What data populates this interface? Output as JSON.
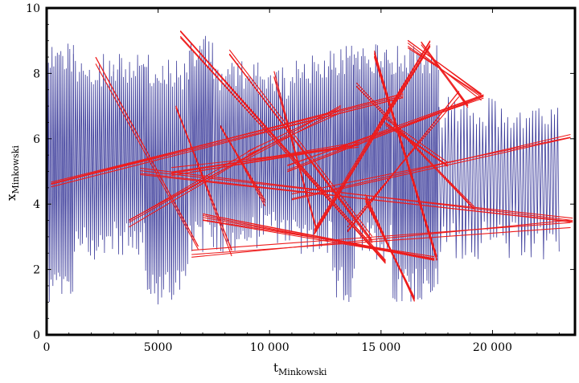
{
  "chart_data": {
    "type": "line",
    "title": "",
    "xlabel": "t",
    "xlabel_subscript": "Minkowski",
    "ylabel": "x",
    "ylabel_subscript": "Minkowski",
    "xlim": [
      0,
      23700
    ],
    "ylim": [
      0,
      10
    ],
    "x_ticks": [
      0,
      5000,
      10000,
      15000,
      20000
    ],
    "x_tick_labels": [
      "0",
      "5000",
      "10 000",
      "15 000",
      "20 000"
    ],
    "y_ticks": [
      0,
      2,
      4,
      6,
      8,
      10
    ],
    "y_tick_labels": [
      "0",
      "2",
      "4",
      "6",
      "8",
      "10"
    ],
    "grid": false,
    "legend": "none",
    "series": [
      {
        "color": "#3a3a9a",
        "style": "dense zigzag",
        "blocks": [
          {
            "t": [
              0,
              1200
            ],
            "x": [
              0.8,
              9.0
            ],
            "step": 40
          },
          {
            "t": [
              1200,
              3000
            ],
            "x": [
              2.2,
              8.6
            ],
            "step": 45
          },
          {
            "t": [
              3000,
              4400
            ],
            "x": [
              2.3,
              8.6
            ],
            "step": 45
          },
          {
            "t": [
              4400,
              5200
            ],
            "x": [
              0.9,
              8.6
            ],
            "step": 40
          },
          {
            "t": [
              5200,
              6400
            ],
            "x": [
              1.0,
              8.5
            ],
            "step": 45
          },
          {
            "t": [
              6400,
              7500
            ],
            "x": [
              2.5,
              9.2
            ],
            "step": 40
          },
          {
            "t": [
              7500,
              9500
            ],
            "x": [
              2.5,
              8.4
            ],
            "step": 45
          },
          {
            "t": [
              9500,
              11200
            ],
            "x": [
              2.8,
              8.2
            ],
            "step": 45
          },
          {
            "t": [
              11200,
              12800
            ],
            "x": [
              2.3,
              8.7
            ],
            "step": 45
          },
          {
            "t": [
              12800,
              13800
            ],
            "x": [
              0.9,
              8.9
            ],
            "step": 40
          },
          {
            "t": [
              13800,
              15500
            ],
            "x": [
              2.3,
              8.9
            ],
            "step": 40
          },
          {
            "t": [
              15500,
              17600
            ],
            "x": [
              1.0,
              8.9
            ],
            "step": 40
          },
          {
            "t": [
              17600,
              23000
            ],
            "x": [
              2.3,
              7.3
            ],
            "step": 70
          }
        ]
      },
      {
        "color": "#ee1c1c",
        "style": "sparse jumps",
        "segments": [
          [
            [
              200,
              4.6
            ],
            [
              16000,
              7.3
            ]
          ],
          [
            [
              4200,
              5.0
            ],
            [
              23600,
              3.5
            ]
          ],
          [
            [
              6500,
              2.5
            ],
            [
              23500,
              3.4
            ]
          ],
          [
            [
              7000,
              3.6
            ],
            [
              17400,
              2.3
            ]
          ],
          [
            [
              6000,
              9.2
            ],
            [
              15200,
              2.3
            ]
          ],
          [
            [
              8200,
              8.7
            ],
            [
              14600,
              2.9
            ]
          ],
          [
            [
              10800,
              5.1
            ],
            [
              19600,
              7.3
            ]
          ],
          [
            [
              11000,
              4.2
            ],
            [
              23500,
              6.1
            ]
          ],
          [
            [
              12000,
              3.1
            ],
            [
              17200,
              8.9
            ]
          ],
          [
            [
              13500,
              3.2
            ],
            [
              18500,
              7.4
            ]
          ],
          [
            [
              14700,
              8.6
            ],
            [
              17500,
              2.3
            ]
          ],
          [
            [
              15200,
              6.5
            ],
            [
              18000,
              5.2
            ]
          ],
          [
            [
              2200,
              8.4
            ],
            [
              6800,
              2.6
            ]
          ],
          [
            [
              3700,
              3.4
            ],
            [
              9500,
              5.7
            ]
          ],
          [
            [
              5800,
              7.0
            ],
            [
              8300,
              2.5
            ]
          ],
          [
            [
              9000,
              5.5
            ],
            [
              13200,
              6.9
            ]
          ],
          [
            [
              10200,
              8.0
            ],
            [
              12100,
              3.3
            ]
          ],
          [
            [
              16200,
              8.9
            ],
            [
              19500,
              7.3
            ]
          ],
          [
            [
              14300,
              4.2
            ],
            [
              16500,
              1.1
            ]
          ],
          [
            [
              13900,
              7.7
            ],
            [
              19200,
              3.8
            ]
          ],
          [
            [
              5600,
              5.0
            ],
            [
              14000,
              5.8
            ]
          ],
          [
            [
              7800,
              6.3
            ],
            [
              9800,
              4.0
            ]
          ],
          [
            [
              16800,
              8.9
            ],
            [
              18900,
              7.0
            ]
          ]
        ]
      }
    ]
  }
}
